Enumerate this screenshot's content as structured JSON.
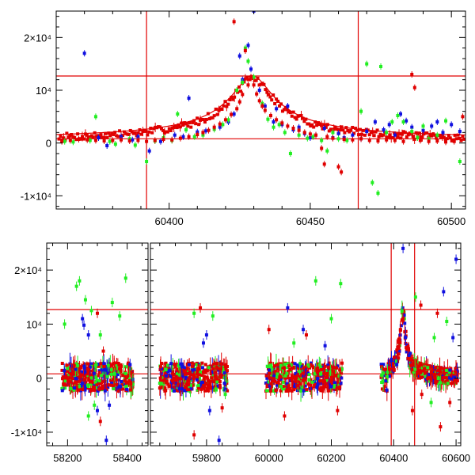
{
  "chart_data": [
    {
      "type": "scatter",
      "panel": "top",
      "title": "",
      "xlabel": "",
      "ylabel": "",
      "xlim": [
        60360,
        60505
      ],
      "ylim": [
        -12500,
        25000
      ],
      "xticks": [
        60400,
        60450,
        60500
      ],
      "xtick_labels": [
        "60400",
        "60450",
        "60500"
      ],
      "yticks": [
        -10000,
        0,
        10000,
        20000
      ],
      "ytick_labels": [
        "-1×10⁴",
        "0",
        "10⁴",
        "2×10⁴"
      ],
      "hlines": [
        12700,
        800
      ],
      "vlines": [
        60392,
        60467
      ],
      "colors": {
        "blue": "#1010e0",
        "green": "#22ee22",
        "red": "#e00000"
      },
      "series": [
        {
          "color": "blue",
          "points": [
            [
              60370,
              17000
            ],
            [
              60375,
              1000
            ],
            [
              60378,
              -500
            ],
            [
              60383,
              1200
            ],
            [
              60387,
              600
            ],
            [
              60389,
              1200
            ],
            [
              60393,
              -1500
            ],
            [
              60397,
              300
            ],
            [
              60402,
              1500
            ],
            [
              60405,
              1200
            ],
            [
              60407,
              8500
            ],
            [
              60410,
              2100
            ],
            [
              60413,
              2300
            ],
            [
              60418,
              3000
            ],
            [
              60421,
              4000
            ],
            [
              60423,
              5500
            ],
            [
              60425,
              16500
            ],
            [
              60426,
              12000
            ],
            [
              60428,
              18500
            ],
            [
              60429,
              14000
            ],
            [
              60430,
              25000
            ],
            [
              60432,
              10000
            ],
            [
              60434,
              7000
            ],
            [
              60437,
              4000
            ],
            [
              60438,
              6500
            ],
            [
              60440,
              3500
            ],
            [
              60442,
              7000
            ],
            [
              60444,
              2500
            ],
            [
              60446,
              3000
            ],
            [
              60448,
              1800
            ],
            [
              60450,
              1000
            ],
            [
              60452,
              1500
            ],
            [
              60455,
              2800
            ],
            [
              60458,
              1000
            ],
            [
              60460,
              1800
            ],
            [
              60462,
              1000
            ],
            [
              60465,
              1500
            ],
            [
              60468,
              800
            ],
            [
              60470,
              2200
            ],
            [
              60473,
              4000
            ],
            [
              60476,
              2500
            ],
            [
              60478,
              3500
            ],
            [
              60480,
              1500
            ],
            [
              60482,
              5500
            ],
            [
              60484,
              4200
            ],
            [
              60486,
              3000
            ],
            [
              60490,
              2400
            ],
            [
              60493,
              3200
            ],
            [
              60495,
              4000
            ],
            [
              60497,
              2000
            ],
            [
              60500,
              3500
            ],
            [
              60503,
              2200
            ]
          ]
        },
        {
          "color": "green",
          "points": [
            [
              60363,
              300
            ],
            [
              60366,
              200
            ],
            [
              60372,
              500
            ],
            [
              60374,
              5000
            ],
            [
              60379,
              300
            ],
            [
              60381,
              -200
            ],
            [
              60386,
              800
            ],
            [
              60388,
              -400
            ],
            [
              60392,
              -3500
            ],
            [
              60395,
              400
            ],
            [
              60398,
              1000
            ],
            [
              60401,
              500
            ],
            [
              60403,
              5500
            ],
            [
              60406,
              2500
            ],
            [
              60409,
              1200
            ],
            [
              60412,
              1500
            ],
            [
              60416,
              2600
            ],
            [
              60419,
              3500
            ],
            [
              60421,
              4400
            ],
            [
              60424,
              10000
            ],
            [
              60426,
              11500
            ],
            [
              60427,
              18000
            ],
            [
              60428,
              15500
            ],
            [
              60430,
              12500
            ],
            [
              60433,
              7500
            ],
            [
              60435,
              4500
            ],
            [
              60437,
              3000
            ],
            [
              60439,
              3500
            ],
            [
              60441,
              2000
            ],
            [
              60443,
              -2000
            ],
            [
              60446,
              1500
            ],
            [
              60449,
              900
            ],
            [
              60451,
              1200
            ],
            [
              60454,
              500
            ],
            [
              60456,
              -1500
            ],
            [
              60458,
              2000
            ],
            [
              60460,
              800
            ],
            [
              60463,
              500
            ],
            [
              60468,
              6000
            ],
            [
              60470,
              15000
            ],
            [
              60472,
              -7500
            ],
            [
              60474,
              -9500
            ],
            [
              60475,
              14500
            ],
            [
              60477,
              2000
            ],
            [
              60479,
              4000
            ],
            [
              60481,
              5200
            ],
            [
              60483,
              4000
            ],
            [
              60486,
              2200
            ],
            [
              60488,
              1000
            ],
            [
              60490,
              3200
            ],
            [
              60492,
              800
            ],
            [
              60495,
              1500
            ],
            [
              60498,
              4200
            ],
            [
              60503,
              -3500
            ]
          ]
        },
        {
          "color": "red",
          "points": [
            [
              60362,
              300
            ],
            [
              60365,
              500
            ],
            [
              60368,
              700
            ],
            [
              60371,
              600
            ],
            [
              60374,
              500
            ],
            [
              60377,
              400
            ],
            [
              60380,
              500
            ],
            [
              60383,
              600
            ],
            [
              60386,
              400
            ],
            [
              60389,
              500
            ],
            [
              60392,
              300
            ],
            [
              60395,
              500
            ],
            [
              60398,
              700
            ],
            [
              60401,
              600
            ],
            [
              60404,
              900
            ],
            [
              60407,
              1200
            ],
            [
              60410,
              1600
            ],
            [
              60412,
              2000
            ],
            [
              60414,
              2400
            ],
            [
              60416,
              3000
            ],
            [
              60418,
              3600
            ],
            [
              60420,
              4400
            ],
            [
              60422,
              5400
            ],
            [
              60423,
              23000
            ],
            [
              60424,
              6500
            ],
            [
              60425,
              7800
            ],
            [
              60426,
              9200
            ],
            [
              60427,
              17500
            ],
            [
              60428,
              11000
            ],
            [
              60429,
              12500
            ],
            [
              60430,
              11000
            ],
            [
              60431,
              9300
            ],
            [
              60432,
              8000
            ],
            [
              60433,
              7000
            ],
            [
              60434,
              6200
            ],
            [
              60436,
              5200
            ],
            [
              60438,
              4400
            ],
            [
              60440,
              3800
            ],
            [
              60442,
              3200
            ],
            [
              60444,
              2800
            ],
            [
              60446,
              2400
            ],
            [
              60448,
              2000
            ],
            [
              60450,
              1700
            ],
            [
              60452,
              1500
            ],
            [
              60454,
              -1000
            ],
            [
              60455,
              -4000
            ],
            [
              60456,
              1200
            ],
            [
              60458,
              900
            ],
            [
              60460,
              -4500
            ],
            [
              60461,
              -5500
            ],
            [
              60462,
              700
            ],
            [
              60465,
              600
            ],
            [
              60468,
              800
            ],
            [
              60471,
              500
            ],
            [
              60474,
              400
            ],
            [
              60477,
              600
            ],
            [
              60480,
              500
            ],
            [
              60483,
              300
            ],
            [
              60486,
              13000
            ],
            [
              60487,
              10500
            ],
            [
              60489,
              500
            ],
            [
              60492,
              300
            ],
            [
              60495,
              400
            ],
            [
              60498,
              200
            ],
            [
              60501,
              300
            ],
            [
              60504,
              5000
            ]
          ]
        }
      ]
    },
    {
      "type": "scatter",
      "panel": "bottom",
      "title": "",
      "xlabel": "",
      "ylabel": "",
      "segments": [
        {
          "xlim": [
            58130,
            58470
          ],
          "xticks": [
            58200,
            58400
          ],
          "xtick_labels": [
            "58200",
            "58400"
          ]
        },
        {
          "xlim": [
            59620,
            60615
          ],
          "xticks": [
            59800,
            60000,
            60200,
            60400,
            60600
          ],
          "xtick_labels": [
            "59800",
            "60000",
            "60200",
            "60400",
            "60600"
          ]
        }
      ],
      "ylim": [
        -12500,
        25000
      ],
      "yticks": [
        -10000,
        0,
        10000,
        20000
      ],
      "ytick_labels": [
        "-1×10⁴",
        "0",
        "10⁴",
        "2×10⁴"
      ],
      "hlines": [
        12700,
        800
      ],
      "vlines": [
        60392,
        60467
      ],
      "colors": {
        "blue": "#1010e0",
        "green": "#22ee22",
        "red": "#e00000"
      },
      "observing_seasons": [
        [
          58180,
          58420
        ],
        [
          59650,
          59870
        ],
        [
          59990,
          60235
        ],
        [
          60360,
          60605
        ]
      ],
      "outliers": {
        "blue": [
          [
            58250,
            11000
          ],
          [
            58255,
            9800
          ],
          [
            58270,
            8000
          ],
          [
            58300,
            -6000
          ],
          [
            58330,
            -11500
          ],
          [
            58340,
            -5000
          ],
          [
            59790,
            6500
          ],
          [
            59800,
            8000
          ],
          [
            59810,
            -6000
          ],
          [
            59840,
            -11500
          ],
          [
            60060,
            13000
          ],
          [
            60110,
            9000
          ],
          [
            60180,
            6000
          ],
          [
            60430,
            24000
          ],
          [
            60560,
            16000
          ],
          [
            60600,
            22000
          ],
          [
            60590,
            7500
          ]
        ],
        "green": [
          [
            58190,
            10000
          ],
          [
            58230,
            17000
          ],
          [
            58240,
            18000
          ],
          [
            58260,
            14500
          ],
          [
            58280,
            12500
          ],
          [
            58310,
            8000
          ],
          [
            58350,
            14000
          ],
          [
            58375,
            11500
          ],
          [
            58395,
            18500
          ],
          [
            58290,
            -5000
          ],
          [
            58270,
            -7000
          ],
          [
            59760,
            12000
          ],
          [
            59820,
            11500
          ],
          [
            59830,
            -2000
          ],
          [
            59860,
            -3000
          ],
          [
            60080,
            6500
          ],
          [
            60150,
            18000
          ],
          [
            60200,
            11000
          ],
          [
            60230,
            17500
          ],
          [
            60470,
            15000
          ],
          [
            60520,
            -4500
          ],
          [
            60530,
            7500
          ],
          [
            60570,
            10500
          ]
        ],
        "red": [
          [
            58300,
            12000
          ],
          [
            58320,
            5000
          ],
          [
            58310,
            -8000
          ],
          [
            59760,
            -10500
          ],
          [
            59780,
            13000
          ],
          [
            59850,
            -5500
          ],
          [
            60000,
            9000
          ],
          [
            60050,
            -7000
          ],
          [
            60120,
            8000
          ],
          [
            60220,
            -6000
          ],
          [
            60430,
            11000
          ],
          [
            60460,
            -6000
          ],
          [
            60487,
            13500
          ],
          [
            60490,
            -3000
          ],
          [
            60540,
            12000
          ],
          [
            60550,
            -9000
          ],
          [
            60580,
            -4500
          ]
        ]
      }
    }
  ]
}
